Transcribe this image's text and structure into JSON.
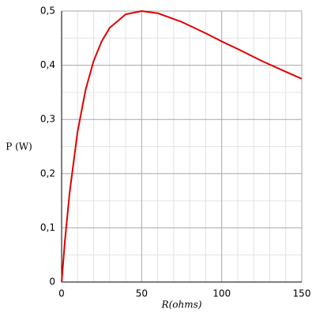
{
  "chart_data": {
    "type": "line",
    "xlabel": "R(ohms)",
    "ylabel": "P (W)",
    "x": [
      0,
      2,
      5,
      10,
      15,
      20,
      25,
      30,
      40,
      50,
      60,
      75,
      90,
      100,
      110,
      125,
      140,
      150
    ],
    "series": [
      {
        "name": "P",
        "color": "#e00000",
        "values": [
          0,
          0.074,
          0.165,
          0.278,
          0.355,
          0.408,
          0.444,
          0.469,
          0.494,
          0.5,
          0.496,
          0.48,
          0.459,
          0.444,
          0.43,
          0.408,
          0.388,
          0.375
        ]
      }
    ],
    "xlim": [
      0,
      150
    ],
    "xticks": [
      0,
      50,
      100,
      150
    ],
    "ylim": [
      0,
      0.5
    ],
    "yticks": [
      0,
      {
        "value": 0.1,
        "label": "0,1"
      },
      {
        "value": 0.2,
        "label": "0,2"
      },
      {
        "value": 0.3,
        "label": "0,3"
      },
      {
        "value": 0.4,
        "label": "0,4"
      },
      {
        "value": 0.5,
        "label": "0,5"
      }
    ],
    "grid": true
  }
}
